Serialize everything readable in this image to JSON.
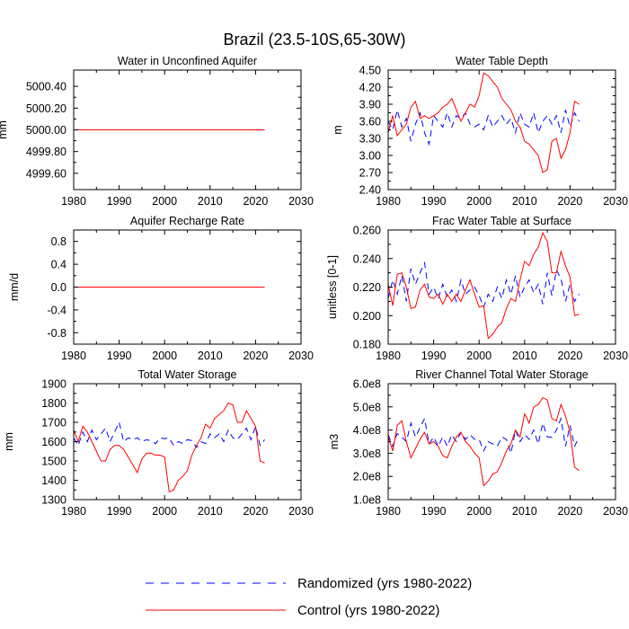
{
  "figure_title": "Brazil (23.5-10S,65-30W)",
  "legend": [
    {
      "label": "Randomized (yrs 1980-2022)",
      "color": "#0000ff",
      "dash": true
    },
    {
      "label": "Control (yrs 1980-2022)",
      "color": "#ff0000",
      "dash": false
    }
  ],
  "chart_data": [
    {
      "type": "line",
      "title": "Water in Unconfined Aquifer",
      "xlabel": "",
      "ylabel": "mm",
      "xlim": [
        1980,
        2030
      ],
      "ylim": [
        4999.45,
        5000.55
      ],
      "xticks": [
        1980,
        1990,
        2000,
        2010,
        2020,
        2030
      ],
      "xtick_labels": [
        "1980",
        "1990",
        "2000",
        "2010",
        "2020",
        "2030"
      ],
      "yticks": [
        4999.6,
        4999.8,
        5000.0,
        5000.2,
        5000.4
      ],
      "ytick_labels": [
        "4999.60",
        "4999.80",
        "5000.00",
        "5000.20",
        "5000.40"
      ],
      "x": [
        1980,
        1981,
        1982,
        1983,
        1984,
        1985,
        1986,
        1987,
        1988,
        1989,
        1990,
        1991,
        1992,
        1993,
        1994,
        1995,
        1996,
        1997,
        1998,
        1999,
        2000,
        2001,
        2002,
        2003,
        2004,
        2005,
        2006,
        2007,
        2008,
        2009,
        2010,
        2011,
        2012,
        2013,
        2014,
        2015,
        2016,
        2017,
        2018,
        2019,
        2020,
        2021,
        2022
      ],
      "series": [
        {
          "name": "Randomized (yrs 1980-2022)",
          "color": "#0000ff",
          "dash": true,
          "values": [
            5000,
            5000,
            5000,
            5000,
            5000,
            5000,
            5000,
            5000,
            5000,
            5000,
            5000,
            5000,
            5000,
            5000,
            5000,
            5000,
            5000,
            5000,
            5000,
            5000,
            5000,
            5000,
            5000,
            5000,
            5000,
            5000,
            5000,
            5000,
            5000,
            5000,
            5000,
            5000,
            5000,
            5000,
            5000,
            5000,
            5000,
            5000,
            5000,
            5000,
            5000,
            5000,
            5000
          ]
        },
        {
          "name": "Control (yrs 1980-2022)",
          "color": "#ff0000",
          "dash": false,
          "values": [
            5000,
            5000,
            5000,
            5000,
            5000,
            5000,
            5000,
            5000,
            5000,
            5000,
            5000,
            5000,
            5000,
            5000,
            5000,
            5000,
            5000,
            5000,
            5000,
            5000,
            5000,
            5000,
            5000,
            5000,
            5000,
            5000,
            5000,
            5000,
            5000,
            5000,
            5000,
            5000,
            5000,
            5000,
            5000,
            5000,
            5000,
            5000,
            5000,
            5000,
            5000,
            5000,
            5000
          ]
        }
      ]
    },
    {
      "type": "line",
      "title": "Water Table Depth",
      "xlabel": "",
      "ylabel": "m",
      "xlim": [
        1980,
        2030
      ],
      "ylim": [
        2.4,
        4.5
      ],
      "xticks": [
        1980,
        1990,
        2000,
        2010,
        2020,
        2030
      ],
      "xtick_labels": [
        "1980",
        "1990",
        "2000",
        "2010",
        "2020",
        "2030"
      ],
      "yticks": [
        2.4,
        2.7,
        3.0,
        3.3,
        3.6,
        3.9,
        4.2,
        4.5
      ],
      "ytick_labels": [
        "2.40",
        "2.70",
        "3.00",
        "3.30",
        "3.60",
        "3.90",
        "4.20",
        "4.50"
      ],
      "x": [
        1980,
        1981,
        1982,
        1983,
        1984,
        1985,
        1986,
        1987,
        1988,
        1989,
        1990,
        1991,
        1992,
        1993,
        1994,
        1995,
        1996,
        1997,
        1998,
        1999,
        2000,
        2001,
        2002,
        2003,
        2004,
        2005,
        2006,
        2007,
        2008,
        2009,
        2010,
        2011,
        2012,
        2013,
        2014,
        2015,
        2016,
        2017,
        2018,
        2019,
        2020,
        2021,
        2022
      ],
      "series": [
        {
          "name": "Randomized (yrs 1980-2022)",
          "color": "#0000ff",
          "dash": true,
          "values": [
            3.6,
            3.45,
            3.8,
            3.5,
            3.65,
            3.25,
            3.55,
            3.75,
            3.4,
            3.2,
            3.7,
            3.6,
            3.5,
            3.75,
            3.5,
            3.7,
            3.65,
            3.75,
            3.55,
            3.5,
            3.55,
            3.45,
            3.7,
            3.5,
            3.6,
            3.7,
            3.55,
            3.65,
            3.4,
            3.75,
            3.55,
            3.5,
            3.75,
            3.4,
            3.6,
            3.7,
            3.55,
            3.7,
            3.4,
            3.8,
            3.5,
            3.75,
            3.6
          ]
        },
        {
          "name": "Control (yrs 1980-2022)",
          "color": "#ff0000",
          "dash": false,
          "values": [
            3.4,
            3.7,
            3.35,
            3.45,
            3.55,
            3.85,
            3.95,
            3.65,
            3.7,
            3.65,
            3.7,
            3.75,
            3.85,
            3.9,
            4.0,
            3.8,
            3.6,
            3.75,
            3.9,
            3.85,
            4.05,
            4.45,
            4.4,
            4.3,
            4.2,
            4.0,
            3.9,
            3.8,
            3.6,
            3.5,
            3.25,
            3.2,
            3.1,
            3.0,
            2.7,
            2.75,
            3.25,
            3.3,
            2.95,
            3.1,
            3.4,
            3.95,
            3.9
          ]
        }
      ]
    },
    {
      "type": "line",
      "title": "Aquifer Recharge Rate",
      "xlabel": "",
      "ylabel": "mm/d",
      "xlim": [
        1980,
        2030
      ],
      "ylim": [
        -1.0,
        1.0
      ],
      "xticks": [
        1980,
        1990,
        2000,
        2010,
        2020,
        2030
      ],
      "xtick_labels": [
        "1980",
        "1990",
        "2000",
        "2010",
        "2020",
        "2030"
      ],
      "yticks": [
        -0.8,
        -0.4,
        0.0,
        0.4,
        0.8
      ],
      "ytick_labels": [
        "-0.8",
        "-0.4",
        "0.0",
        "0.4",
        "0.8"
      ],
      "x": [
        1980,
        1981,
        1982,
        1983,
        1984,
        1985,
        1986,
        1987,
        1988,
        1989,
        1990,
        1991,
        1992,
        1993,
        1994,
        1995,
        1996,
        1997,
        1998,
        1999,
        2000,
        2001,
        2002,
        2003,
        2004,
        2005,
        2006,
        2007,
        2008,
        2009,
        2010,
        2011,
        2012,
        2013,
        2014,
        2015,
        2016,
        2017,
        2018,
        2019,
        2020,
        2021,
        2022
      ],
      "series": [
        {
          "name": "Randomized (yrs 1980-2022)",
          "color": "#0000ff",
          "dash": true,
          "values": [
            0,
            0,
            0,
            0,
            0,
            0,
            0,
            0,
            0,
            0,
            0,
            0,
            0,
            0,
            0,
            0,
            0,
            0,
            0,
            0,
            0,
            0,
            0,
            0,
            0,
            0,
            0,
            0,
            0,
            0,
            0,
            0,
            0,
            0,
            0,
            0,
            0,
            0,
            0,
            0,
            0,
            0,
            0
          ]
        },
        {
          "name": "Control (yrs 1980-2022)",
          "color": "#ff0000",
          "dash": false,
          "values": [
            0,
            0,
            0,
            0,
            0,
            0,
            0,
            0,
            0,
            0,
            0,
            0,
            0,
            0,
            0,
            0,
            0,
            0,
            0,
            0,
            0,
            0,
            0,
            0,
            0,
            0,
            0,
            0,
            0,
            0,
            0,
            0,
            0,
            0,
            0,
            0,
            0,
            0,
            0,
            0,
            0,
            0,
            0
          ]
        }
      ]
    },
    {
      "type": "line",
      "title": "Frac Water Table at Surface",
      "xlabel": "",
      "ylabel": "unitless [0-1]",
      "xlim": [
        1980,
        2030
      ],
      "ylim": [
        0.18,
        0.26
      ],
      "xticks": [
        1980,
        1990,
        2000,
        2010,
        2020,
        2030
      ],
      "xtick_labels": [
        "1980",
        "1990",
        "2000",
        "2010",
        "2020",
        "2030"
      ],
      "yticks": [
        0.18,
        0.2,
        0.22,
        0.24,
        0.26
      ],
      "ytick_labels": [
        "0.180",
        "0.200",
        "0.220",
        "0.240",
        "0.260"
      ],
      "x": [
        1980,
        1981,
        1982,
        1983,
        1984,
        1985,
        1986,
        1987,
        1988,
        1989,
        1990,
        1991,
        1992,
        1993,
        1994,
        1995,
        1996,
        1997,
        1998,
        1999,
        2000,
        2001,
        2002,
        2003,
        2004,
        2005,
        2006,
        2007,
        2008,
        2009,
        2010,
        2011,
        2012,
        2013,
        2014,
        2015,
        2016,
        2017,
        2018,
        2019,
        2020,
        2021,
        2022
      ],
      "series": [
        {
          "name": "Randomized (yrs 1980-2022)",
          "color": "#0000ff",
          "dash": true,
          "values": [
            0.212,
            0.225,
            0.215,
            0.228,
            0.21,
            0.233,
            0.222,
            0.23,
            0.237,
            0.215,
            0.22,
            0.212,
            0.222,
            0.213,
            0.218,
            0.21,
            0.225,
            0.215,
            0.218,
            0.22,
            0.214,
            0.206,
            0.215,
            0.21,
            0.22,
            0.212,
            0.225,
            0.215,
            0.228,
            0.213,
            0.22,
            0.225,
            0.216,
            0.222,
            0.208,
            0.23,
            0.214,
            0.232,
            0.226,
            0.21,
            0.222,
            0.21,
            0.215
          ]
        },
        {
          "name": "Control (yrs 1980-2022)",
          "color": "#ff0000",
          "dash": false,
          "values": [
            0.222,
            0.207,
            0.229,
            0.23,
            0.22,
            0.205,
            0.206,
            0.218,
            0.222,
            0.213,
            0.212,
            0.215,
            0.208,
            0.215,
            0.21,
            0.215,
            0.21,
            0.218,
            0.225,
            0.215,
            0.206,
            0.207,
            0.184,
            0.187,
            0.192,
            0.195,
            0.205,
            0.212,
            0.21,
            0.225,
            0.238,
            0.235,
            0.243,
            0.248,
            0.258,
            0.252,
            0.23,
            0.23,
            0.245,
            0.235,
            0.227,
            0.2,
            0.201
          ]
        }
      ]
    },
    {
      "type": "line",
      "title": "Total Water Storage",
      "xlabel": "",
      "ylabel": "mm",
      "xlim": [
        1980,
        2030
      ],
      "ylim": [
        1300,
        1900
      ],
      "xticks": [
        1980,
        1990,
        2000,
        2010,
        2020,
        2030
      ],
      "xtick_labels": [
        "1980",
        "1990",
        "2000",
        "2010",
        "2020",
        "2030"
      ],
      "yticks": [
        1300,
        1400,
        1500,
        1600,
        1700,
        1800,
        1900
      ],
      "ytick_labels": [
        "1300",
        "1400",
        "1500",
        "1600",
        "1700",
        "1800",
        "1900"
      ],
      "x": [
        1980,
        1981,
        1982,
        1983,
        1984,
        1985,
        1986,
        1987,
        1988,
        1989,
        1990,
        1991,
        1992,
        1993,
        1994,
        1995,
        1996,
        1997,
        1998,
        1999,
        2000,
        2001,
        2002,
        2003,
        2004,
        2005,
        2006,
        2007,
        2008,
        2009,
        2010,
        2011,
        2012,
        2013,
        2014,
        2015,
        2016,
        2017,
        2018,
        2019,
        2020,
        2021,
        2022
      ],
      "series": [
        {
          "name": "Randomized (yrs 1980-2022)",
          "color": "#0000ff",
          "dash": true,
          "values": [
            1620,
            1580,
            1650,
            1600,
            1660,
            1610,
            1640,
            1670,
            1600,
            1650,
            1700,
            1600,
            1620,
            1610,
            1620,
            1600,
            1610,
            1605,
            1590,
            1620,
            1615,
            1620,
            1580,
            1600,
            1590,
            1610,
            1605,
            1570,
            1600,
            1590,
            1640,
            1620,
            1640,
            1600,
            1660,
            1620,
            1610,
            1640,
            1670,
            1610,
            1680,
            1580,
            1610
          ]
        },
        {
          "name": "Control (yrs 1980-2022)",
          "color": "#ff0000",
          "dash": false,
          "values": [
            1660,
            1600,
            1680,
            1650,
            1600,
            1550,
            1500,
            1500,
            1560,
            1580,
            1580,
            1560,
            1520,
            1480,
            1440,
            1510,
            1540,
            1540,
            1530,
            1530,
            1520,
            1340,
            1350,
            1400,
            1420,
            1450,
            1530,
            1580,
            1620,
            1690,
            1670,
            1720,
            1740,
            1760,
            1800,
            1790,
            1700,
            1700,
            1760,
            1720,
            1680,
            1500,
            1490
          ]
        }
      ]
    },
    {
      "type": "line",
      "title": "River Channel Total Water Storage",
      "xlabel": "",
      "ylabel": "m3",
      "xlim": [
        1980,
        2030
      ],
      "ylim": [
        100000000,
        600000000
      ],
      "xticks": [
        1980,
        1990,
        2000,
        2010,
        2020,
        2030
      ],
      "xtick_labels": [
        "1980",
        "1990",
        "2000",
        "2010",
        "2020",
        "2030"
      ],
      "yticks": [
        100000000,
        200000000,
        300000000,
        400000000,
        500000000,
        600000000
      ],
      "ytick_labels": [
        "1.0e8",
        "2.0e8",
        "3.0e8",
        "4.0e8",
        "5.0e8",
        "6.0e8"
      ],
      "x": [
        1980,
        1981,
        1982,
        1983,
        1984,
        1985,
        1986,
        1987,
        1988,
        1989,
        1990,
        1991,
        1992,
        1993,
        1994,
        1995,
        1996,
        1997,
        1998,
        1999,
        2000,
        2001,
        2002,
        2003,
        2004,
        2005,
        2006,
        2007,
        2008,
        2009,
        2010,
        2011,
        2012,
        2013,
        2014,
        2015,
        2016,
        2017,
        2018,
        2019,
        2020,
        2021,
        2022
      ],
      "series": [
        {
          "name": "Randomized (yrs 1980-2022)",
          "color": "#0000ff",
          "dash": true,
          "values": [
            380000000,
            330000000,
            385000000,
            370000000,
            350000000,
            430000000,
            370000000,
            410000000,
            450000000,
            340000000,
            370000000,
            330000000,
            370000000,
            330000000,
            380000000,
            350000000,
            390000000,
            360000000,
            380000000,
            360000000,
            360000000,
            310000000,
            350000000,
            340000000,
            330000000,
            370000000,
            360000000,
            300000000,
            400000000,
            350000000,
            380000000,
            360000000,
            400000000,
            340000000,
            430000000,
            370000000,
            370000000,
            400000000,
            450000000,
            330000000,
            420000000,
            330000000,
            370000000
          ]
        },
        {
          "name": "Control (yrs 1980-2022)",
          "color": "#ff0000",
          "dash": false,
          "values": [
            370000000,
            310000000,
            420000000,
            440000000,
            350000000,
            280000000,
            320000000,
            360000000,
            390000000,
            340000000,
            350000000,
            330000000,
            290000000,
            280000000,
            330000000,
            370000000,
            390000000,
            350000000,
            330000000,
            300000000,
            280000000,
            160000000,
            180000000,
            210000000,
            220000000,
            260000000,
            310000000,
            340000000,
            400000000,
            370000000,
            470000000,
            430000000,
            500000000,
            510000000,
            540000000,
            530000000,
            450000000,
            440000000,
            510000000,
            460000000,
            390000000,
            240000000,
            225000000
          ]
        }
      ]
    }
  ]
}
